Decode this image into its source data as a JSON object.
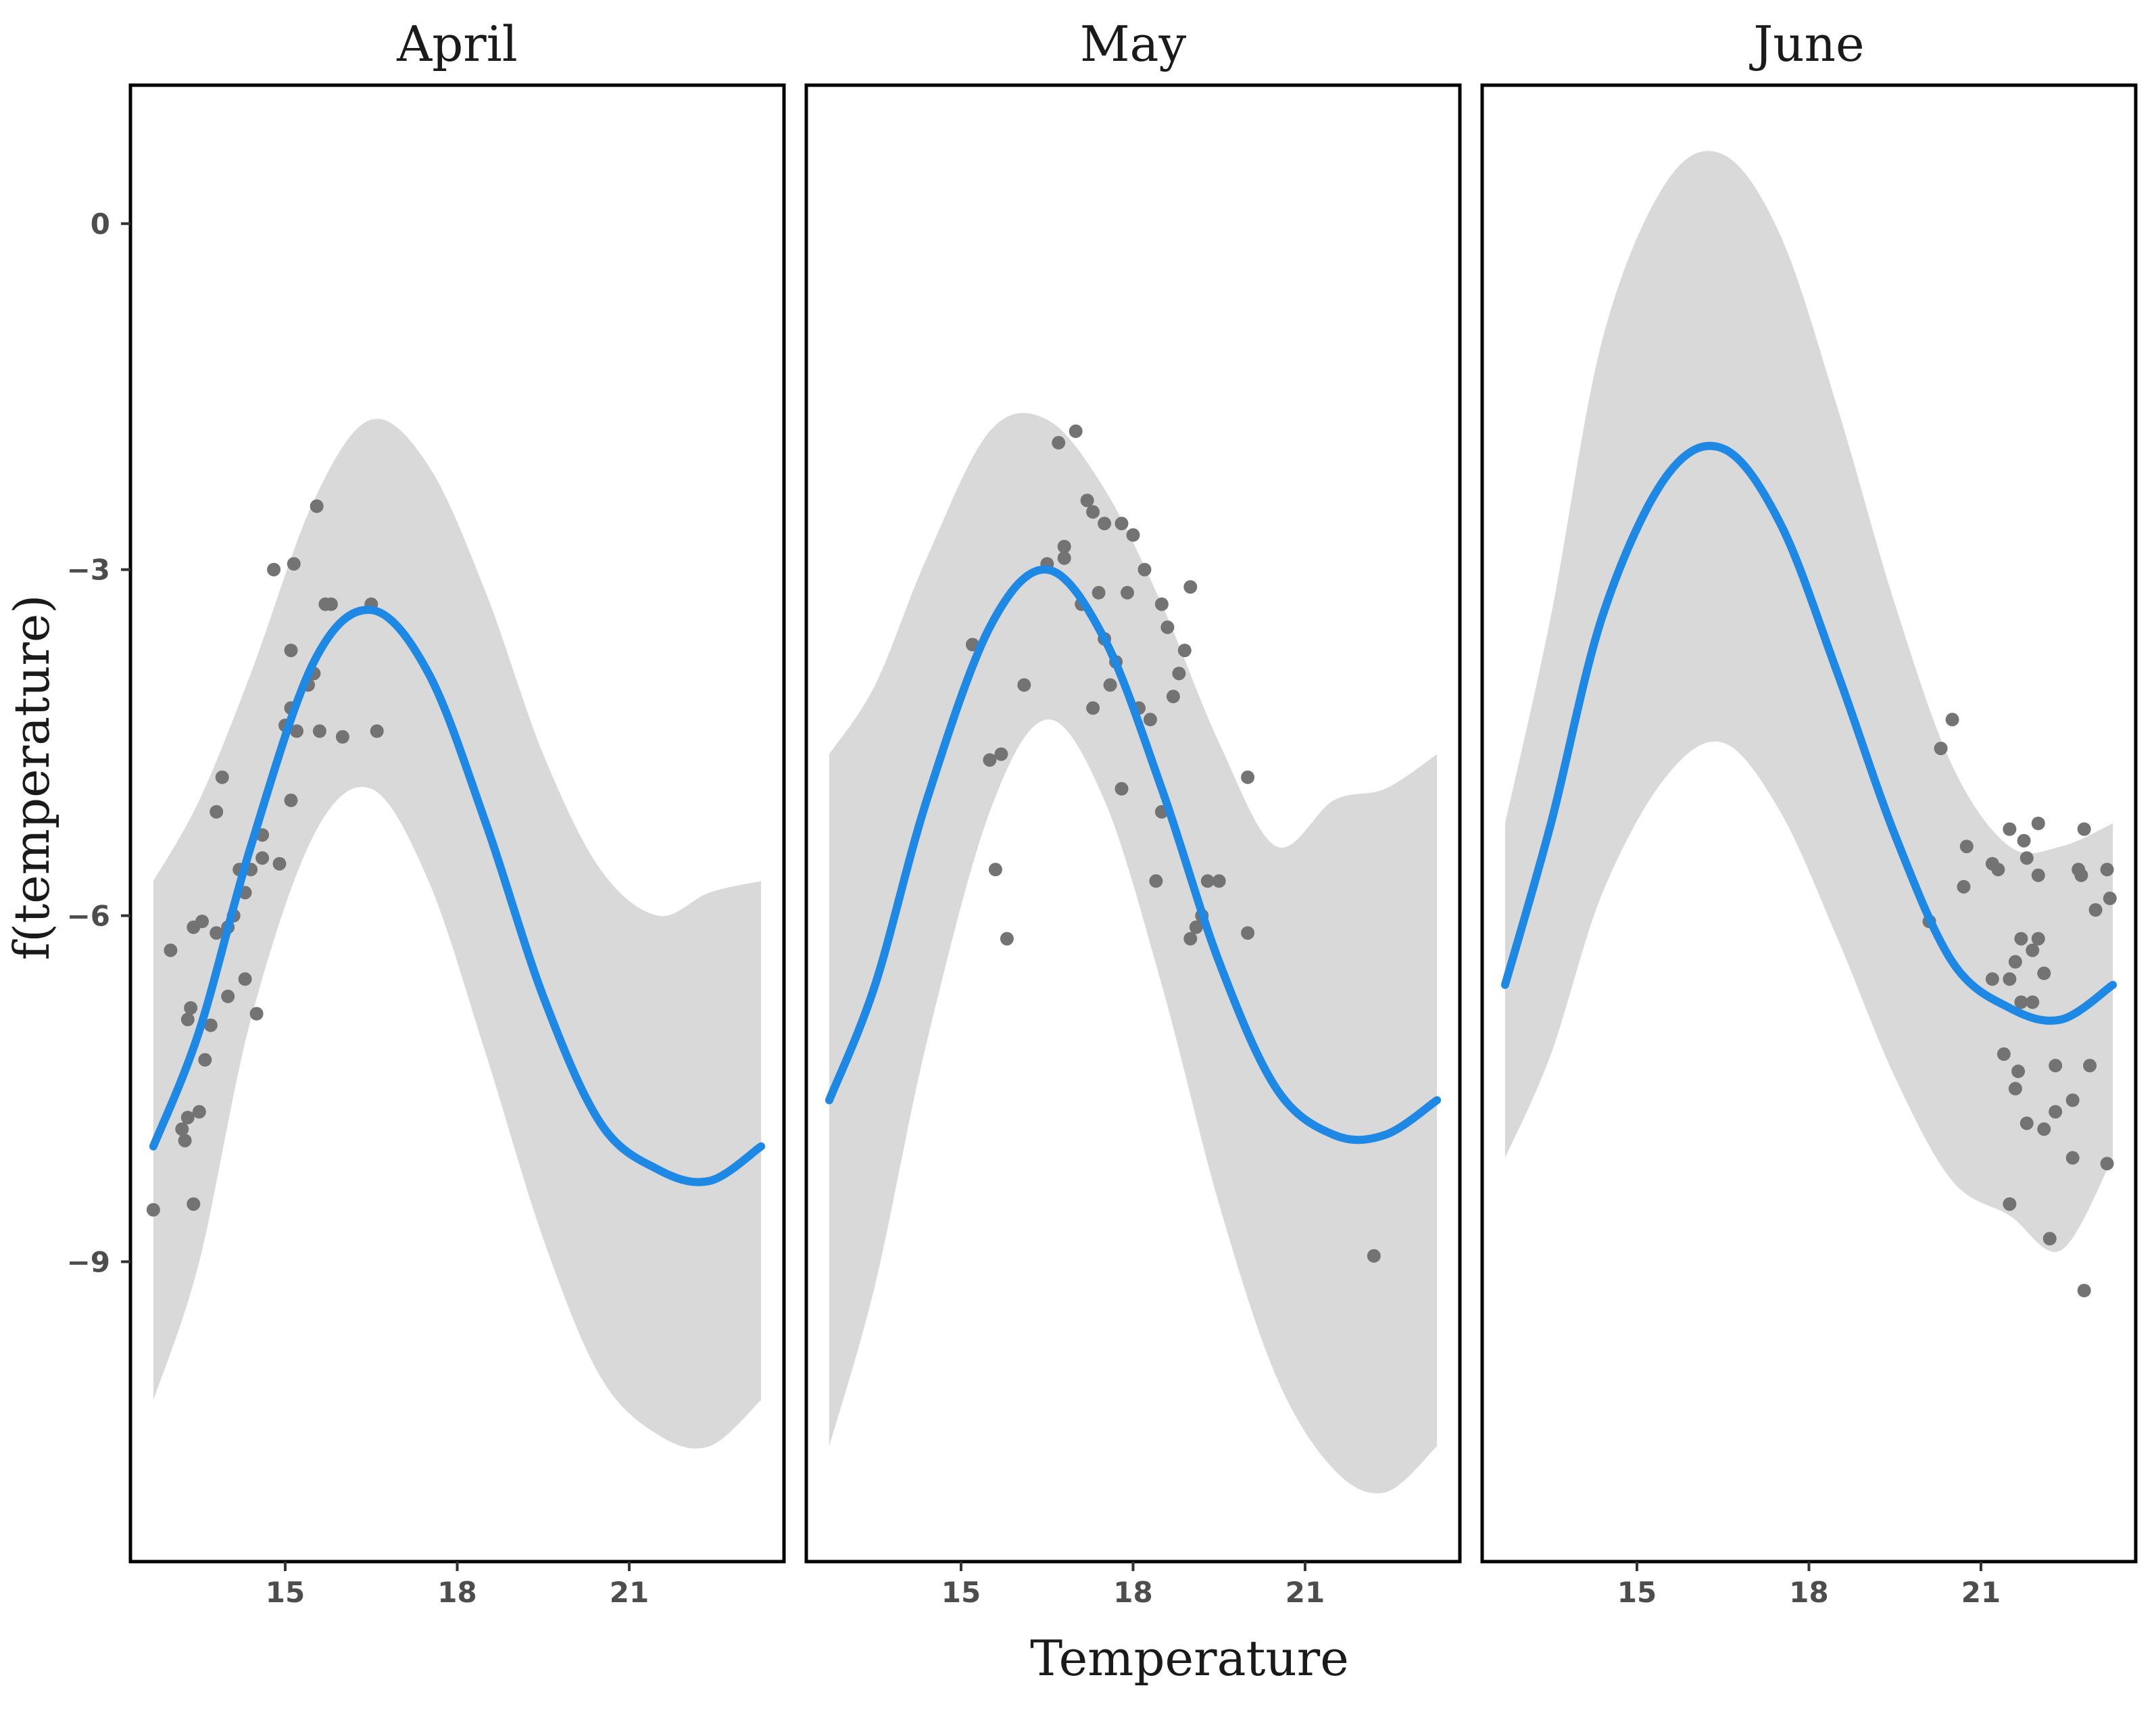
{
  "chart_data": {
    "type": "line",
    "description_type": "faceted GAM smooth with confidence ribbon and partial residual scatter",
    "xlabel": "Temperature",
    "ylabel": "f(temperature)",
    "x_ticks": [
      15,
      18,
      21
    ],
    "y_ticks": [
      0,
      -3,
      -6,
      -9
    ],
    "xlim": [
      12.3,
      23.7
    ],
    "ylim": [
      -11.6,
      1.2
    ],
    "colors": {
      "line": "#1e88e5",
      "ribbon": "#d9d9d9",
      "points": "#737373",
      "panel_border": "#000000"
    },
    "facets": [
      {
        "title": "April",
        "x_range": [
          12.7,
          23.3
        ],
        "smooth": {
          "x": [
            12.7,
            13.5,
            14.4,
            15.5,
            16.5,
            17.5,
            18.5,
            19.5,
            20.5,
            21.5,
            22.4,
            23.3
          ],
          "y": [
            -8.0,
            -7.0,
            -5.4,
            -3.8,
            -3.35,
            -3.9,
            -5.2,
            -6.7,
            -7.8,
            -8.2,
            -8.3,
            -8.0
          ],
          "upper": [
            -5.7,
            -5.0,
            -3.9,
            -2.4,
            -1.7,
            -2.1,
            -3.2,
            -4.6,
            -5.6,
            -6.0,
            -5.8,
            -5.7
          ],
          "lower": [
            -10.2,
            -9.0,
            -6.9,
            -5.3,
            -4.9,
            -5.7,
            -7.2,
            -8.8,
            -10.0,
            -10.5,
            -10.6,
            -10.2
          ]
        },
        "points": [
          [
            12.7,
            -8.55
          ],
          [
            13.0,
            -6.3
          ],
          [
            13.2,
            -7.85
          ],
          [
            13.25,
            -7.95
          ],
          [
            13.3,
            -7.75
          ],
          [
            13.3,
            -6.9
          ],
          [
            13.35,
            -6.8
          ],
          [
            13.4,
            -8.5
          ],
          [
            13.4,
            -6.1
          ],
          [
            13.5,
            -7.7
          ],
          [
            13.55,
            -6.05
          ],
          [
            13.6,
            -7.25
          ],
          [
            13.7,
            -6.95
          ],
          [
            13.8,
            -6.15
          ],
          [
            13.8,
            -5.1
          ],
          [
            13.9,
            -4.8
          ],
          [
            14.0,
            -6.7
          ],
          [
            14.0,
            -6.1
          ],
          [
            14.1,
            -6.0
          ],
          [
            14.2,
            -5.6
          ],
          [
            14.3,
            -5.8
          ],
          [
            14.3,
            -6.55
          ],
          [
            14.4,
            -5.6
          ],
          [
            14.5,
            -6.85
          ],
          [
            14.6,
            -5.5
          ],
          [
            14.6,
            -5.3
          ],
          [
            14.8,
            -3.0
          ],
          [
            14.9,
            -5.55
          ],
          [
            15.0,
            -4.35
          ],
          [
            15.1,
            -4.2
          ],
          [
            15.1,
            -3.7
          ],
          [
            15.1,
            -5.0
          ],
          [
            15.15,
            -2.95
          ],
          [
            15.2,
            -4.4
          ],
          [
            15.4,
            -4.0
          ],
          [
            15.5,
            -3.9
          ],
          [
            15.55,
            -2.45
          ],
          [
            15.6,
            -4.4
          ],
          [
            15.7,
            -3.3
          ],
          [
            15.8,
            -3.3
          ],
          [
            16.0,
            -4.45
          ],
          [
            16.5,
            -3.3
          ],
          [
            16.6,
            -4.4
          ]
        ]
      },
      {
        "title": "May",
        "x_range": [
          12.7,
          23.3
        ],
        "smooth": {
          "x": [
            12.7,
            13.5,
            14.4,
            15.5,
            16.5,
            17.5,
            18.5,
            19.5,
            20.5,
            21.5,
            22.4,
            23.3
          ],
          "y": [
            -7.6,
            -6.6,
            -5.0,
            -3.5,
            -3.0,
            -3.6,
            -4.9,
            -6.4,
            -7.5,
            -7.9,
            -7.9,
            -7.6
          ],
          "upper": [
            -4.6,
            -4.0,
            -2.9,
            -1.8,
            -1.7,
            -2.3,
            -3.3,
            -4.5,
            -5.4,
            -5.0,
            -4.9,
            -4.6
          ],
          "lower": [
            -10.6,
            -9.2,
            -7.1,
            -5.1,
            -4.3,
            -5.0,
            -6.6,
            -8.5,
            -10.0,
            -10.8,
            -11.0,
            -10.6
          ]
        },
        "points": [
          [
            15.2,
            -3.65
          ],
          [
            15.5,
            -4.65
          ],
          [
            15.6,
            -5.6
          ],
          [
            15.7,
            -4.6
          ],
          [
            15.8,
            -6.2
          ],
          [
            16.1,
            -4.0
          ],
          [
            16.5,
            -2.95
          ],
          [
            16.7,
            -1.9
          ],
          [
            16.8,
            -2.8
          ],
          [
            16.8,
            -2.9
          ],
          [
            17.0,
            -1.8
          ],
          [
            17.1,
            -3.3
          ],
          [
            17.2,
            -2.4
          ],
          [
            17.3,
            -2.5
          ],
          [
            17.3,
            -4.2
          ],
          [
            17.4,
            -3.2
          ],
          [
            17.5,
            -3.6
          ],
          [
            17.5,
            -2.6
          ],
          [
            17.6,
            -4.0
          ],
          [
            17.7,
            -3.8
          ],
          [
            17.8,
            -4.9
          ],
          [
            17.8,
            -2.6
          ],
          [
            17.9,
            -3.2
          ],
          [
            18.0,
            -2.7
          ],
          [
            18.1,
            -4.2
          ],
          [
            18.2,
            -3.0
          ],
          [
            18.3,
            -4.3
          ],
          [
            18.4,
            -5.7
          ],
          [
            18.5,
            -3.3
          ],
          [
            18.5,
            -5.1
          ],
          [
            18.6,
            -3.5
          ],
          [
            18.7,
            -4.1
          ],
          [
            18.8,
            -3.9
          ],
          [
            18.9,
            -3.7
          ],
          [
            19.0,
            -3.15
          ],
          [
            19.0,
            -6.2
          ],
          [
            19.1,
            -6.1
          ],
          [
            19.2,
            -6.0
          ],
          [
            19.3,
            -5.7
          ],
          [
            19.5,
            -5.7
          ],
          [
            20.0,
            -4.8
          ],
          [
            20.0,
            -6.15
          ],
          [
            22.2,
            -8.95
          ]
        ]
      },
      {
        "title": "June",
        "x_range": [
          12.7,
          23.3
        ],
        "smooth": {
          "x": [
            12.7,
            13.5,
            14.4,
            15.5,
            16.5,
            17.5,
            18.5,
            19.5,
            20.5,
            21.5,
            22.4,
            23.3
          ],
          "y": [
            -6.6,
            -5.2,
            -3.4,
            -2.2,
            -1.95,
            -2.6,
            -3.9,
            -5.3,
            -6.4,
            -6.8,
            -6.9,
            -6.6
          ],
          "upper": [
            -5.2,
            -3.4,
            -1.0,
            0.35,
            0.6,
            -0.1,
            -1.6,
            -3.3,
            -4.7,
            -5.4,
            -5.4,
            -5.2
          ],
          "lower": [
            -8.1,
            -7.2,
            -5.8,
            -4.8,
            -4.5,
            -5.1,
            -6.2,
            -7.4,
            -8.3,
            -8.6,
            -8.9,
            -8.1
          ]
        },
        "points": [
          [
            20.1,
            -6.05
          ],
          [
            20.3,
            -4.55
          ],
          [
            20.5,
            -4.3
          ],
          [
            20.7,
            -5.75
          ],
          [
            20.75,
            -5.4
          ],
          [
            21.2,
            -6.55
          ],
          [
            21.2,
            -5.55
          ],
          [
            21.3,
            -5.6
          ],
          [
            21.4,
            -7.2
          ],
          [
            21.5,
            -8.5
          ],
          [
            21.5,
            -6.55
          ],
          [
            21.5,
            -5.25
          ],
          [
            21.6,
            -6.4
          ],
          [
            21.6,
            -7.5
          ],
          [
            21.65,
            -7.35
          ],
          [
            21.7,
            -6.75
          ],
          [
            21.7,
            -6.2
          ],
          [
            21.75,
            -5.35
          ],
          [
            21.8,
            -5.5
          ],
          [
            21.8,
            -7.8
          ],
          [
            21.9,
            -6.3
          ],
          [
            21.9,
            -6.75
          ],
          [
            22.0,
            -5.65
          ],
          [
            22.0,
            -6.2
          ],
          [
            22.0,
            -5.2
          ],
          [
            22.1,
            -7.85
          ],
          [
            22.1,
            -6.5
          ],
          [
            22.2,
            -8.8
          ],
          [
            22.3,
            -7.7
          ],
          [
            22.3,
            -7.3
          ],
          [
            22.6,
            -8.1
          ],
          [
            22.6,
            -7.6
          ],
          [
            22.7,
            -5.6
          ],
          [
            22.75,
            -5.65
          ],
          [
            22.8,
            -9.25
          ],
          [
            22.8,
            -5.25
          ],
          [
            22.9,
            -7.3
          ],
          [
            23.0,
            -5.95
          ],
          [
            23.2,
            -8.15
          ],
          [
            23.2,
            -5.6
          ],
          [
            23.25,
            -5.85
          ]
        ]
      }
    ]
  }
}
